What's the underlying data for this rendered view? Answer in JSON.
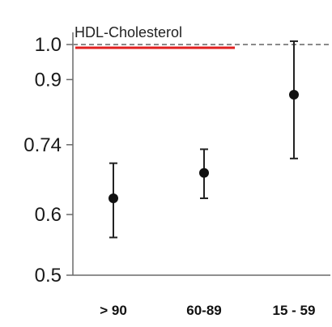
{
  "chart_data": {
    "type": "scatter",
    "title": "HDL-Cholesterol",
    "xlabel": "",
    "ylabel": "",
    "categories": [
      "> 90",
      "60-89",
      "15 - 59"
    ],
    "yticks": [
      0.5,
      0.6,
      0.74,
      0.9,
      1.0
    ],
    "ytick_labels": [
      "0.5",
      "0.6",
      "0.74",
      "0.9",
      "1.0"
    ],
    "ylim": [
      0.5,
      1.05
    ],
    "yscale": "log",
    "reference_line": 1.0,
    "points": [
      {
        "category": "> 90",
        "value": 0.63,
        "lower": 0.56,
        "upper": 0.7
      },
      {
        "category": "60-89",
        "value": 0.68,
        "lower": 0.63,
        "upper": 0.73
      },
      {
        "category": "15 - 59",
        "value": 0.86,
        "lower": 0.71,
        "upper": 1.01
      }
    ],
    "grid": false,
    "colors": {
      "marker": "#111111",
      "title_underline": "#e02020",
      "reference_line": "#8a8a8a"
    }
  }
}
